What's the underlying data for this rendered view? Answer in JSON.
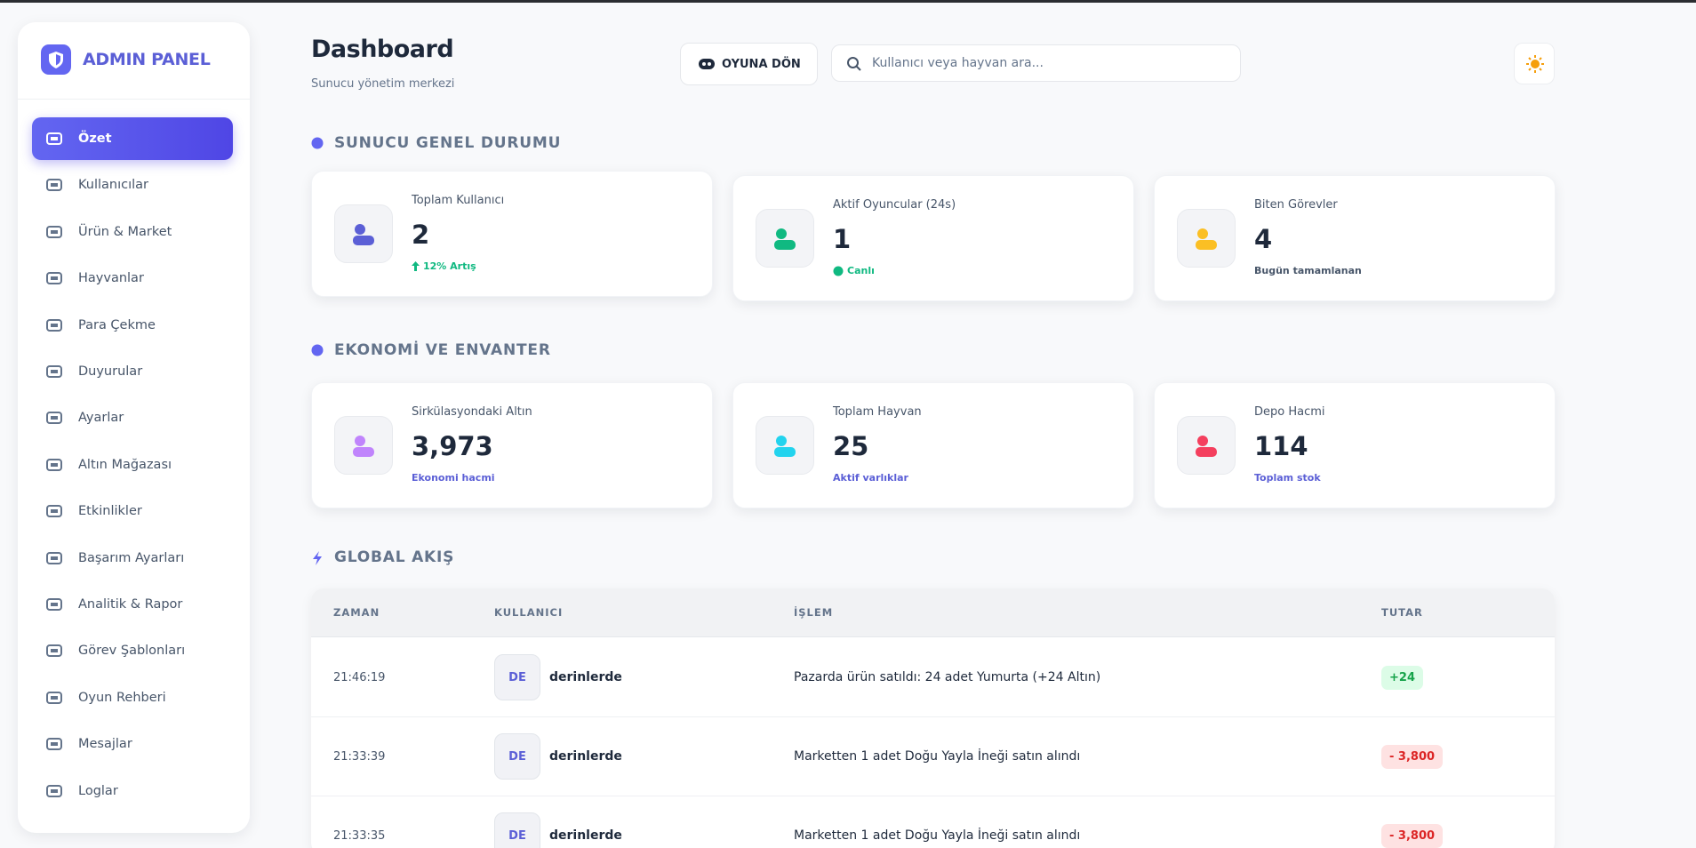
{
  "sidebar": {
    "brand": "ADMIN PANEL",
    "items": [
      "Özet",
      "Kullanıcılar",
      "Ürün & Market",
      "Hayvanlar",
      "Para Çekme",
      "Duyurular",
      "Ayarlar",
      "Altın Mağazası",
      "Etkinlikler",
      "Başarım Ayarları",
      "Analitik & Rapor",
      "Görev Şablonları",
      "Oyun Rehberi",
      "Mesajlar",
      "Loglar"
    ]
  },
  "header": {
    "title": "Dashboard",
    "subtitle": "Sunucu yönetim merkezi",
    "back_button": "OYUNA DÖN",
    "search_placeholder": "Kullanıcı veya hayvan ara..."
  },
  "sections": [
    {
      "title": "SUNUCU GENEL DURUMU",
      "cards": [
        {
          "label": "Toplam Kullanıcı",
          "value": "2",
          "note": "12% Artış"
        },
        {
          "label": "Aktif Oyuncular (24s)",
          "value": "1",
          "note": "Canlı"
        },
        {
          "label": "Biten Görevler",
          "value": "4",
          "note": "Bugün tamamlanan"
        }
      ]
    },
    {
      "title": "EKONOMİ VE ENVANTER",
      "cards": [
        {
          "label": "Sirkülasyondaki Altın",
          "value": "3,973",
          "note": "Ekonomi hacmi"
        },
        {
          "label": "Toplam Hayvan",
          "value": "25",
          "note": "Aktif varlıklar"
        },
        {
          "label": "Depo Hacmi",
          "value": "114",
          "note": "Toplam stok"
        }
      ]
    }
  ],
  "feed": {
    "title": "GLOBAL AKIŞ",
    "columns": [
      "ZAMAN",
      "KULLANICI",
      "İŞLEM",
      "TUTAR"
    ],
    "rows": [
      {
        "time": "21:46:19",
        "avatar": "DE",
        "user": "derinlerde",
        "action": "Pazarda ürün satıldı: 24 adet Yumurta (+24 Altın)",
        "amount": "+24"
      },
      {
        "time": "21:33:39",
        "avatar": "DE",
        "user": "derinlerde",
        "action": "Marketten 1 adet Doğu Yayla İneği satın alındı",
        "amount": "- 3,800"
      },
      {
        "time": "21:33:35",
        "avatar": "DE",
        "user": "derinlerde",
        "action": "Marketten 1 adet Doğu Yayla İneği satın alındı",
        "amount": "- 3,800"
      }
    ]
  }
}
